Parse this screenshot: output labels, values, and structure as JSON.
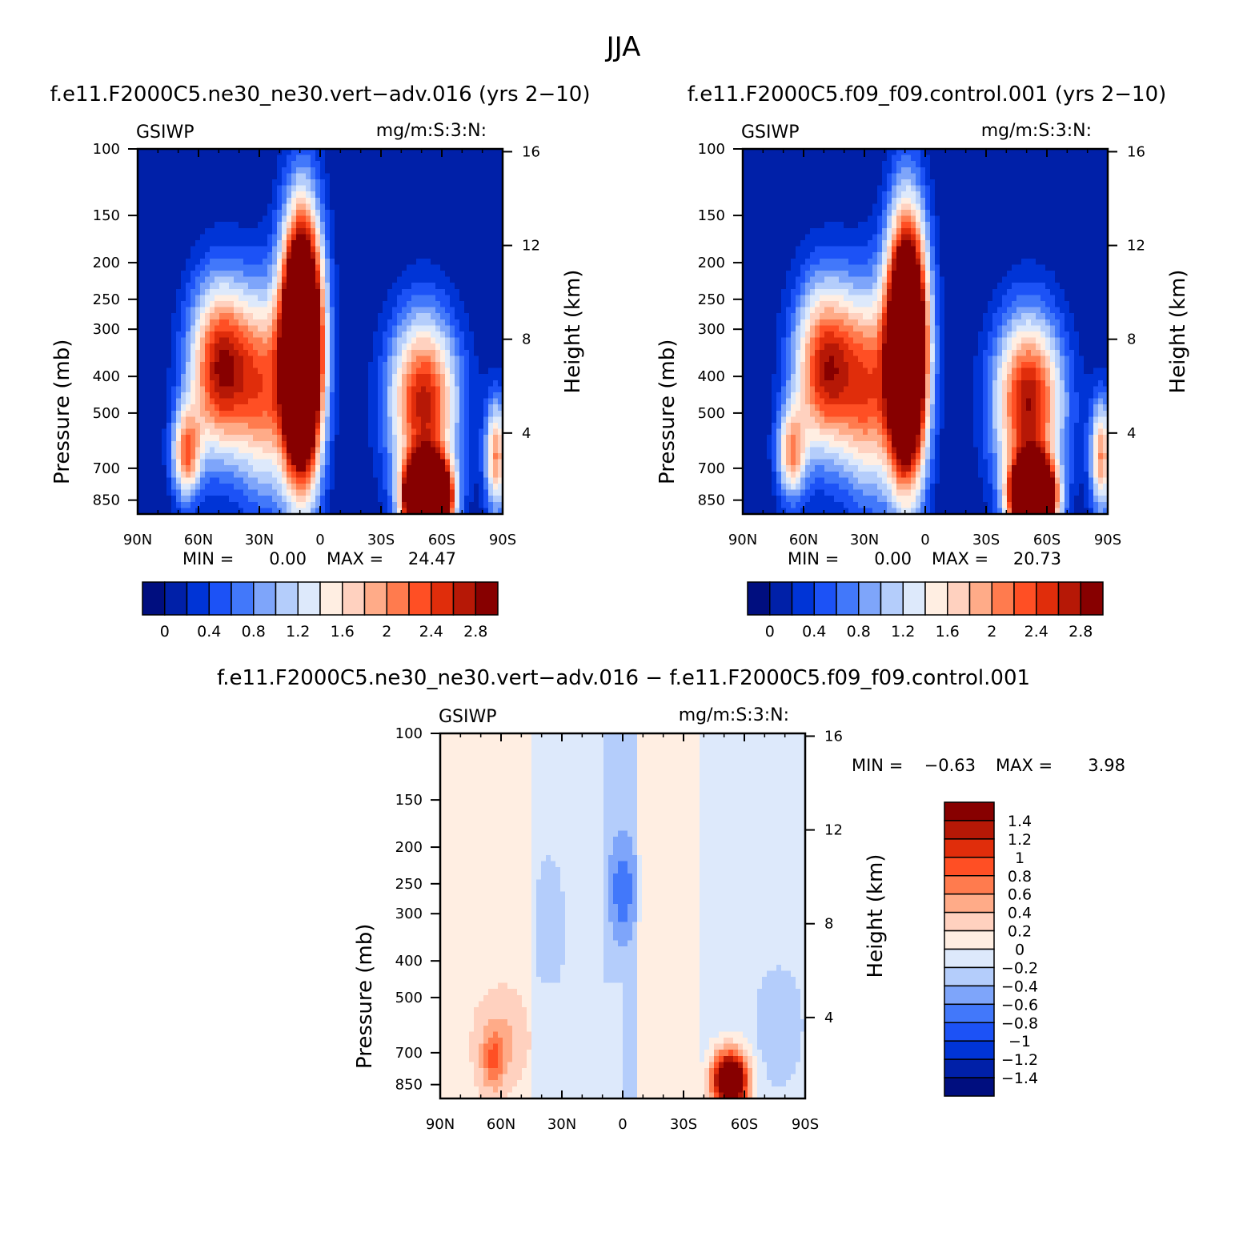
{
  "figure_title": "JJA",
  "colors": {
    "seq_palette": [
      "#000e7f",
      "#0020a8",
      "#0034d6",
      "#1c52f6",
      "#4278fa",
      "#7ea5fa",
      "#b4cdfb",
      "#dde9fb",
      "#ffeee2",
      "#ffd1bf",
      "#ffab88",
      "#ff7b4e",
      "#ff4f24",
      "#e02d0b",
      "#b61806",
      "#870000"
    ],
    "diff_palette": [
      "#000e7f",
      "#0020a8",
      "#0034d6",
      "#1c52f6",
      "#4278fa",
      "#7ea5fa",
      "#b4cdfb",
      "#dde9fb",
      "#ffeee2",
      "#ffd1bf",
      "#ffab88",
      "#ff7b4e",
      "#ff4f24",
      "#e02d0b",
      "#b61806",
      "#870000"
    ]
  },
  "chart_data": [
    {
      "type": "heatmap",
      "title": "f.e11.F2000C5.ne30_ne30.vert−adv.016 (yrs 2−10)",
      "left_label": "GSIWP",
      "right_label": "mg/m:S:3:N:",
      "xlabel": "",
      "ylabel": "Pressure (mb)",
      "y2label": "Height (km)",
      "x_ticks": [
        "90N",
        "60N",
        "30N",
        "0",
        "30S",
        "60S",
        "90S"
      ],
      "y_ticks": [
        100,
        150,
        200,
        250,
        300,
        400,
        500,
        700,
        850
      ],
      "y2_ticks": [
        16,
        12,
        8,
        4
      ],
      "ylim": [
        100,
        925
      ],
      "yscale": "log",
      "xlim": [
        90,
        -90
      ],
      "min_label": "MIN =",
      "min_value": "0.00",
      "max_label": "MAX =",
      "max_value": "24.47",
      "colorbar_labels": [
        "0",
        "0.4",
        "0.8",
        "1.2",
        "1.6",
        "2",
        "2.4",
        "2.8"
      ],
      "levels": [
        0,
        0.2,
        0.4,
        0.6,
        0.8,
        1.0,
        1.2,
        1.4,
        1.6,
        1.8,
        2.0,
        2.2,
        2.4,
        2.6,
        2.8
      ],
      "features": [
        {
          "lat": 9,
          "p": 340,
          "amp": 6.5,
          "sl": 7,
          "sp": 0.55
        },
        {
          "lat": 49,
          "p": 380,
          "amp": 2.8,
          "sl": 11,
          "sp": 0.38
        },
        {
          "lat": 66,
          "p": 640,
          "amp": 2.0,
          "sl": 5,
          "sp": 0.2
        },
        {
          "lat": 28,
          "p": 440,
          "amp": 1.8,
          "sl": 9,
          "sp": 0.45
        },
        {
          "lat": -53,
          "p": 840,
          "amp": 9.0,
          "sl": 7,
          "sp": 0.15
        },
        {
          "lat": -51,
          "p": 470,
          "amp": 2.7,
          "sl": 12,
          "sp": 0.38
        },
        {
          "lat": -87,
          "p": 650,
          "amp": 2.0,
          "sl": 4,
          "sp": 0.25
        }
      ]
    },
    {
      "type": "heatmap",
      "title": "f.e11.F2000C5.f09_f09.control.001 (yrs 2−10)",
      "left_label": "GSIWP",
      "right_label": "mg/m:S:3:N:",
      "xlabel": "",
      "ylabel": "Pressure (mb)",
      "y2label": "Height (km)",
      "x_ticks": [
        "90N",
        "60N",
        "30N",
        "0",
        "30S",
        "60S",
        "90S"
      ],
      "y_ticks": [
        100,
        150,
        200,
        250,
        300,
        400,
        500,
        700,
        850
      ],
      "y2_ticks": [
        16,
        12,
        8,
        4
      ],
      "ylim": [
        100,
        925
      ],
      "yscale": "log",
      "xlim": [
        90,
        -90
      ],
      "min_label": "MIN =",
      "min_value": "0.00",
      "max_label": "MAX =",
      "max_value": "20.73",
      "colorbar_labels": [
        "0",
        "0.4",
        "0.8",
        "1.2",
        "1.6",
        "2",
        "2.4",
        "2.8"
      ],
      "levels": [
        0,
        0.2,
        0.4,
        0.6,
        0.8,
        1.0,
        1.2,
        1.4,
        1.6,
        1.8,
        2.0,
        2.2,
        2.4,
        2.6,
        2.8
      ],
      "features": [
        {
          "lat": 9,
          "p": 340,
          "amp": 6.0,
          "sl": 7,
          "sp": 0.55
        },
        {
          "lat": 49,
          "p": 380,
          "amp": 2.7,
          "sl": 11,
          "sp": 0.38
        },
        {
          "lat": 66,
          "p": 640,
          "amp": 1.8,
          "sl": 5,
          "sp": 0.2
        },
        {
          "lat": 28,
          "p": 440,
          "amp": 1.9,
          "sl": 9,
          "sp": 0.45
        },
        {
          "lat": -53,
          "p": 840,
          "amp": 7.5,
          "sl": 7,
          "sp": 0.15
        },
        {
          "lat": -51,
          "p": 470,
          "amp": 2.8,
          "sl": 12,
          "sp": 0.38
        },
        {
          "lat": -87,
          "p": 650,
          "amp": 2.0,
          "sl": 4,
          "sp": 0.25
        }
      ]
    },
    {
      "type": "heatmap",
      "title": "f.e11.F2000C5.ne30_ne30.vert−adv.016 − f.e11.F2000C5.f09_f09.control.001",
      "left_label": "GSIWP",
      "right_label": "mg/m:S:3:N:",
      "xlabel": "",
      "ylabel": "Pressure (mb)",
      "y2label": "Height (km)",
      "x_ticks": [
        "90N",
        "60N",
        "30N",
        "0",
        "30S",
        "60S",
        "90S"
      ],
      "y_ticks": [
        100,
        150,
        200,
        250,
        300,
        400,
        500,
        700,
        850
      ],
      "y2_ticks": [
        16,
        12,
        8,
        4
      ],
      "ylim": [
        100,
        925
      ],
      "yscale": "log",
      "xlim": [
        90,
        -90
      ],
      "min_label": "MIN =",
      "min_value": "−0.63",
      "max_label": "MAX =",
      "max_value": "3.98",
      "colorbar_labels": [
        "1.4",
        "1.2",
        "1",
        "0.8",
        "0.6",
        "0.4",
        "0.2",
        "0",
        "−0.2",
        "−0.4",
        "−0.6",
        "−0.8",
        "−1",
        "−1.2",
        "−1.4"
      ],
      "levels": [
        -1.4,
        -1.2,
        -1.0,
        -0.8,
        -0.6,
        -0.4,
        -0.2,
        0,
        0.2,
        0.4,
        0.6,
        0.8,
        1.0,
        1.2,
        1.4
      ],
      "features": [
        {
          "lat": -53,
          "p": 830,
          "amp": 2.6,
          "sl": 6,
          "sp": 0.12
        },
        {
          "lat": 64,
          "p": 740,
          "amp": 0.55,
          "sl": 4,
          "sp": 0.12
        },
        {
          "lat": 60,
          "p": 640,
          "amp": 0.3,
          "sl": 8,
          "sp": 0.18
        },
        {
          "lat": 0,
          "p": 260,
          "amp": -0.55,
          "sl": 5,
          "sp": 0.25
        },
        {
          "lat": 36,
          "p": 330,
          "amp": -0.3,
          "sl": 5,
          "sp": 0.3
        },
        {
          "lat": -77,
          "p": 600,
          "amp": -0.3,
          "sl": 8,
          "sp": 0.25
        }
      ],
      "bands": [
        {
          "lat0": 90,
          "lat1": 85,
          "val": 0.05
        },
        {
          "lat0": 85,
          "lat1": 45,
          "val": 0.08
        },
        {
          "lat0": 45,
          "lat1": 10,
          "val": -0.1
        },
        {
          "lat0": 10,
          "lat1": -8,
          "val": -0.2
        },
        {
          "lat0": -8,
          "lat1": -38,
          "val": 0.1
        },
        {
          "lat0": -38,
          "lat1": -90,
          "val": -0.1
        }
      ],
      "lower_bias": 0.1
    }
  ]
}
